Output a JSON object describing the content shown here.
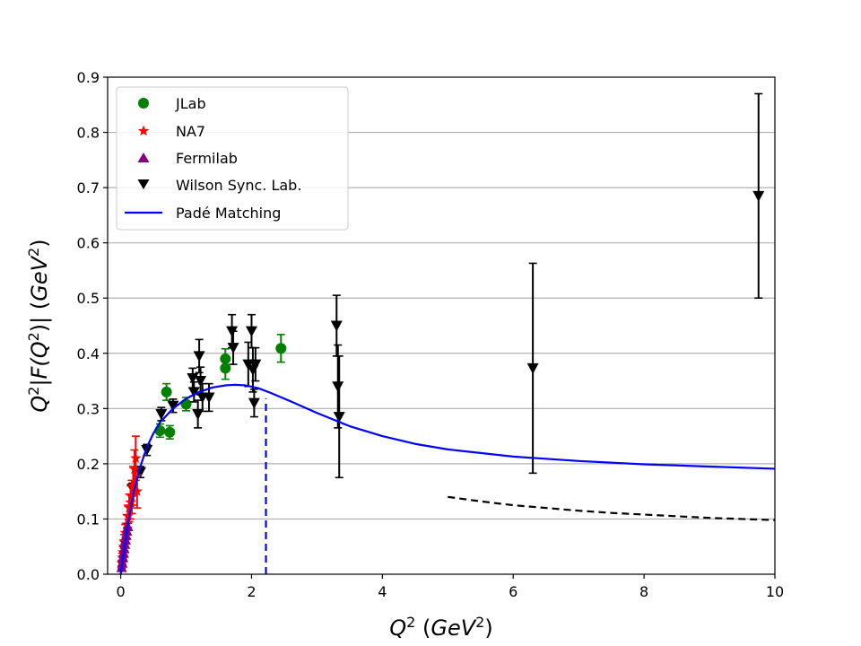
{
  "chart_data": {
    "type": "scatter",
    "title": "",
    "xlabel": {
      "base": "Q",
      "sup": "2",
      "unit_base": "GeV",
      "unit_sup": "2"
    },
    "ylabel": {
      "p1": "Q",
      "s1": "2",
      "p2": "|F(Q",
      "s2": "2",
      "p3": ")|",
      "unit_base": "GeV",
      "unit_sup": "2"
    },
    "xlim": [
      -0.2,
      10
    ],
    "ylim": [
      0,
      0.9
    ],
    "x_ticks": [
      0,
      2,
      4,
      6,
      8,
      10
    ],
    "x_tick_labels": [
      "0",
      "2",
      "4",
      "6",
      "8",
      "10"
    ],
    "y_ticks": [
      0.0,
      0.1,
      0.2,
      0.3,
      0.4,
      0.5,
      0.6,
      0.7,
      0.8,
      0.9
    ],
    "y_tick_labels": [
      "0.0",
      "0.1",
      "0.2",
      "0.3",
      "0.4",
      "0.5",
      "0.6",
      "0.7",
      "0.8",
      "0.9"
    ],
    "grid": "horizontal",
    "legend_position": "top-left",
    "series": [
      {
        "name": "JLab",
        "marker": "circle",
        "color": "#008000",
        "points": [
          {
            "x": 0.6,
            "y": 0.26,
            "err": 0.012
          },
          {
            "x": 0.7,
            "y": 0.33,
            "err": 0.015
          },
          {
            "x": 0.75,
            "y": 0.257,
            "err": 0.012
          },
          {
            "x": 1.0,
            "y": 0.308,
            "err": 0.012
          },
          {
            "x": 1.6,
            "y": 0.39,
            "err": 0.018
          },
          {
            "x": 1.6,
            "y": 0.373,
            "err": 0.02
          },
          {
            "x": 2.45,
            "y": 0.409,
            "err": 0.025
          }
        ]
      },
      {
        "name": "NA7",
        "marker": "star",
        "color": "#ff0000",
        "points": [
          {
            "x": 0.015,
            "y": 0.02,
            "err": 0.005
          },
          {
            "x": 0.025,
            "y": 0.03,
            "err": 0.008
          },
          {
            "x": 0.035,
            "y": 0.04,
            "err": 0.01
          },
          {
            "x": 0.045,
            "y": 0.05,
            "err": 0.01
          },
          {
            "x": 0.055,
            "y": 0.06,
            "err": 0.012
          },
          {
            "x": 0.07,
            "y": 0.075,
            "err": 0.015
          },
          {
            "x": 0.09,
            "y": 0.09,
            "err": 0.018
          },
          {
            "x": 0.11,
            "y": 0.105,
            "err": 0.02
          },
          {
            "x": 0.13,
            "y": 0.12,
            "err": 0.025
          },
          {
            "x": 0.15,
            "y": 0.13,
            "err": 0.03
          },
          {
            "x": 0.17,
            "y": 0.14,
            "err": 0.03
          },
          {
            "x": 0.19,
            "y": 0.16,
            "err": 0.035
          },
          {
            "x": 0.21,
            "y": 0.19,
            "err": 0.035
          },
          {
            "x": 0.23,
            "y": 0.21,
            "err": 0.04
          },
          {
            "x": 0.25,
            "y": 0.15,
            "err": 0.03
          }
        ]
      },
      {
        "name": "Fermilab",
        "marker": "triangle-up",
        "color": "#800080",
        "points": [
          {
            "x": 0.015,
            "y": 0.012,
            "err": 0.002
          },
          {
            "x": 0.025,
            "y": 0.02,
            "err": 0.002
          },
          {
            "x": 0.035,
            "y": 0.03,
            "err": 0.003
          },
          {
            "x": 0.045,
            "y": 0.038,
            "err": 0.003
          },
          {
            "x": 0.055,
            "y": 0.046,
            "err": 0.004
          },
          {
            "x": 0.065,
            "y": 0.054,
            "err": 0.004
          },
          {
            "x": 0.075,
            "y": 0.062,
            "err": 0.005
          },
          {
            "x": 0.085,
            "y": 0.07,
            "err": 0.005
          },
          {
            "x": 0.095,
            "y": 0.078,
            "err": 0.006
          },
          {
            "x": 0.11,
            "y": 0.086,
            "err": 0.006
          }
        ]
      },
      {
        "name": "Wilson Sync. Lab.",
        "marker": "triangle-down",
        "color": "#000000",
        "points": [
          {
            "x": 0.18,
            "y": 0.155,
            "err": 0.01
          },
          {
            "x": 0.3,
            "y": 0.185,
            "err": 0.01
          },
          {
            "x": 0.4,
            "y": 0.225,
            "err": 0.01
          },
          {
            "x": 0.62,
            "y": 0.29,
            "err": 0.012
          },
          {
            "x": 0.8,
            "y": 0.305,
            "err": 0.012
          },
          {
            "x": 1.1,
            "y": 0.355,
            "err": 0.018
          },
          {
            "x": 1.12,
            "y": 0.33,
            "err": 0.018
          },
          {
            "x": 1.18,
            "y": 0.29,
            "err": 0.025
          },
          {
            "x": 1.2,
            "y": 0.395,
            "err": 0.03
          },
          {
            "x": 1.22,
            "y": 0.35,
            "err": 0.025
          },
          {
            "x": 1.25,
            "y": 0.32,
            "err": 0.025
          },
          {
            "x": 1.35,
            "y": 0.32,
            "err": 0.025
          },
          {
            "x": 1.7,
            "y": 0.44,
            "err": 0.03
          },
          {
            "x": 1.72,
            "y": 0.41,
            "err": 0.03
          },
          {
            "x": 1.95,
            "y": 0.38,
            "err": 0.04
          },
          {
            "x": 2.0,
            "y": 0.44,
            "err": 0.03
          },
          {
            "x": 2.02,
            "y": 0.37,
            "err": 0.04
          },
          {
            "x": 2.04,
            "y": 0.31,
            "err": 0.025
          },
          {
            "x": 2.06,
            "y": 0.38,
            "err": 0.03
          },
          {
            "x": 3.3,
            "y": 0.45,
            "err": 0.055
          },
          {
            "x": 3.32,
            "y": 0.34,
            "err": 0.075
          },
          {
            "x": 3.34,
            "y": 0.285,
            "err": 0.11
          },
          {
            "x": 6.3,
            "y": 0.373,
            "err": 0.19
          },
          {
            "x": 9.75,
            "y": 0.685,
            "err": 0.185
          }
        ]
      },
      {
        "name": "Padé Matching",
        "marker": "line",
        "color": "#0000ff",
        "x": [
          0.0,
          0.1,
          0.2,
          0.3,
          0.4,
          0.5,
          0.6,
          0.8,
          1.0,
          1.2,
          1.4,
          1.6,
          1.75,
          1.9,
          2.1,
          2.3,
          2.6,
          3.0,
          3.5,
          4.0,
          4.5,
          5.0,
          6.0,
          7.0,
          8.0,
          9.0,
          10.0
        ],
        "y": [
          0.0,
          0.085,
          0.15,
          0.195,
          0.23,
          0.255,
          0.275,
          0.3,
          0.318,
          0.33,
          0.338,
          0.342,
          0.343,
          0.342,
          0.337,
          0.328,
          0.313,
          0.292,
          0.268,
          0.25,
          0.236,
          0.226,
          0.213,
          0.205,
          0.199,
          0.195,
          0.191
        ]
      }
    ],
    "dashed_curve": {
      "color": "#000000",
      "x": [
        5.0,
        5.5,
        6.0,
        6.5,
        7.0,
        7.5,
        8.0,
        8.5,
        9.0,
        9.5,
        10.0
      ],
      "y": [
        0.14,
        0.132,
        0.125,
        0.12,
        0.115,
        0.111,
        0.108,
        0.105,
        0.102,
        0.1,
        0.098
      ]
    },
    "vertical_marker": {
      "x": 2.22,
      "y_top": 0.318,
      "color": "#0000ff"
    }
  }
}
